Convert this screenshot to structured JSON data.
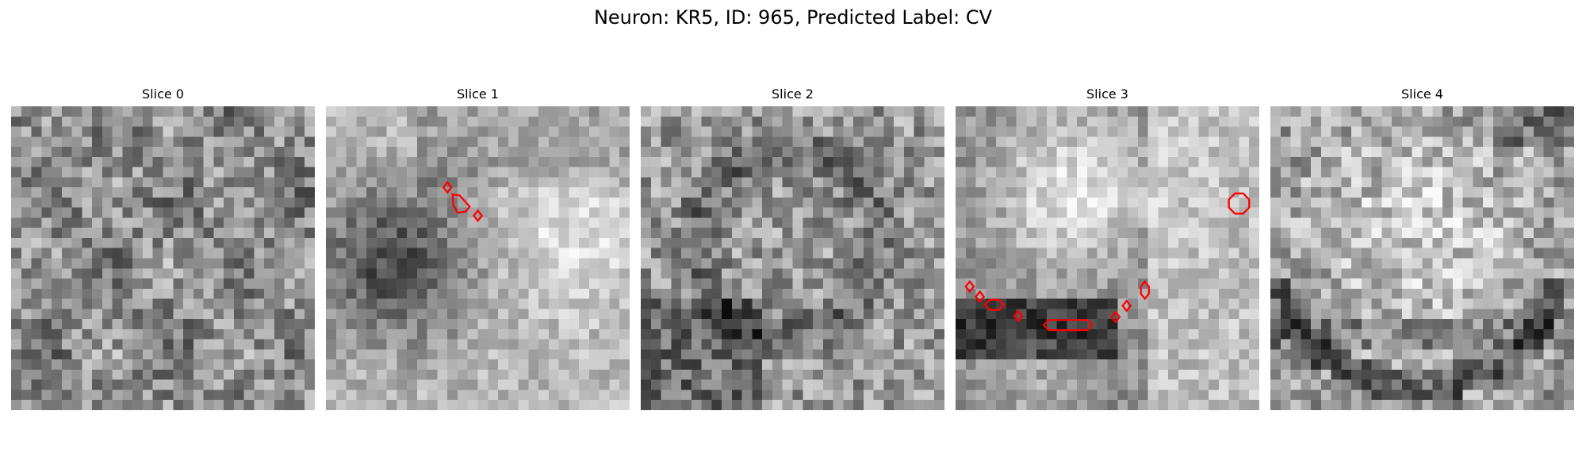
{
  "figure": {
    "title": "Neuron: KR5, ID: 965, Predicted Label: CV"
  },
  "panels": [
    {
      "label": "Slice 0",
      "seed": 11,
      "pattern": "noise"
    },
    {
      "label": "Slice 1",
      "seed": 23,
      "pattern": "dark-blob-left"
    },
    {
      "label": "Slice 2",
      "seed": 37,
      "pattern": "ring"
    },
    {
      "label": "Slice 3",
      "seed": 51,
      "pattern": "bright-cell-with-band"
    },
    {
      "label": "Slice 4",
      "seed": 73,
      "pattern": "large-bright-cell"
    }
  ],
  "colors": {
    "contour": "#ff0000",
    "background": "#ffffff"
  },
  "image": {
    "colormap": "grayscale",
    "grid_size": 30
  }
}
